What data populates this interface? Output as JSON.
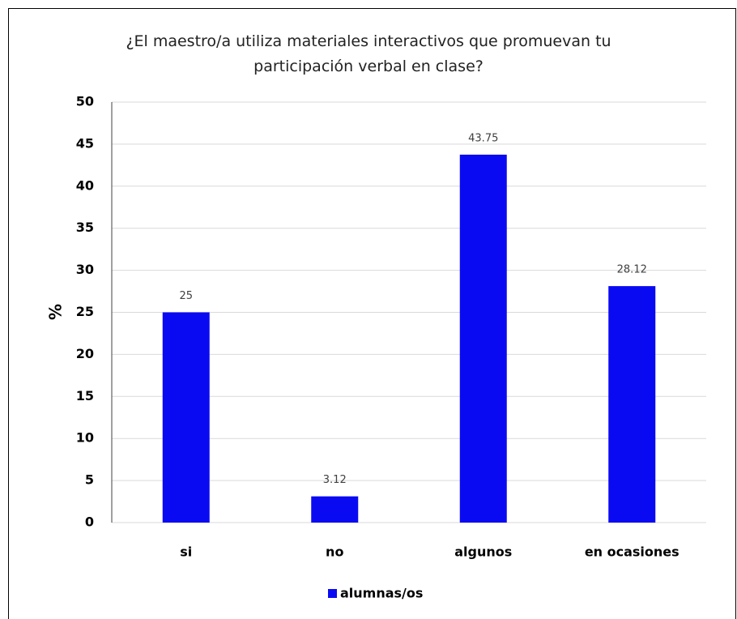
{
  "chart_data": {
    "type": "bar",
    "title": "¿El maestro/a utiliza materiales interactivos que promuevan tu participación verbal en clase?",
    "y_label": "%",
    "categories": [
      "si",
      "no",
      "algunos",
      "en ocasiones"
    ],
    "series": [
      {
        "name": "alumnas/os",
        "color": "#0a0af2",
        "values": [
          25,
          3.12,
          43.75,
          28.12
        ]
      }
    ],
    "ylim": [
      0,
      50
    ],
    "yticks": [
      0,
      5,
      10,
      15,
      20,
      25,
      30,
      35,
      40,
      45,
      50
    ],
    "grid": true,
    "legend": "bottom"
  }
}
